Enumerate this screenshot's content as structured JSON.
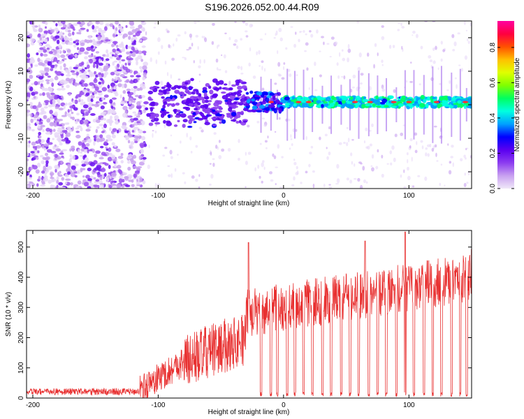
{
  "title": "S196.2026.052.00.44.R09",
  "chart_data": [
    {
      "type": "heatmap",
      "title": "S196.2026.052.00.44.R09",
      "xlabel": "Height of straight line (km)",
      "ylabel": "Frequency (Hz)",
      "xlim": [
        -205,
        150
      ],
      "ylim": [
        -25,
        25
      ],
      "xticks": [
        -200,
        -100,
        0,
        100
      ],
      "yticks": [
        -20,
        -10,
        0,
        10,
        20
      ],
      "colorbar": {
        "label": "Normalized spectral amplitude",
        "range": [
          0,
          0.95
        ],
        "ticks": [
          0.0,
          0.2,
          0.4,
          0.6,
          0.8
        ],
        "tick_labels": [
          "0.0",
          "0.2",
          "0.4",
          "0.6",
          "0.8"
        ],
        "colors": [
          "#f0e8f8",
          "#c8a0f0",
          "#8c3cf0",
          "#5a00f0",
          "#0000ff",
          "#00a0ff",
          "#00ffe0",
          "#00ff60",
          "#80ff00",
          "#e0ff00",
          "#ffc000",
          "#ff5000",
          "#ff0040",
          "#ff00a0"
        ]
      },
      "description_note": "noise region below -110 km, spectral line near 0 Hz above -110 km"
    },
    {
      "type": "line",
      "xlabel": "Height of straight line (km)",
      "ylabel": "SNR (10 * v/v)",
      "xlim": [
        -205,
        150
      ],
      "ylim": [
        0,
        555
      ],
      "xticks": [
        -200,
        -100,
        0,
        100
      ],
      "yticks": [
        0,
        100,
        200,
        300,
        400,
        500
      ],
      "color": "#e83030",
      "segments": [
        {
          "x": [
            -205,
            -115
          ],
          "level": 20,
          "noise": 8
        },
        {
          "x": [
            -115,
            -80
          ],
          "level_start": 25,
          "level_end": 120,
          "noise": 50
        },
        {
          "x": [
            -80,
            -30
          ],
          "level_start": 120,
          "level_end": 200,
          "noise": 90
        },
        {
          "x": [
            -30,
            150
          ],
          "level_start": 280,
          "level_end": 400,
          "noise": 80
        }
      ],
      "dropouts_x": [
        -18,
        -10,
        -5,
        3,
        9,
        16,
        23,
        31,
        38,
        46,
        53,
        60,
        68,
        75,
        82,
        90,
        97,
        104,
        112,
        119,
        126,
        134,
        141,
        146
      ],
      "spikes": [
        {
          "x": -28,
          "y": 515
        },
        {
          "x": 65,
          "y": 520
        },
        {
          "x": 97,
          "y": 550
        },
        {
          "x": 150,
          "y": 492
        }
      ]
    }
  ],
  "labels": {
    "top_xlabel": "Height of straight line (km)",
    "top_ylabel": "Frequency (Hz)",
    "bottom_xlabel": "Height of straight line (km)",
    "bottom_ylabel": "SNR (10 * v/v)",
    "colorbar_label": "Normalized spectral amplitude"
  }
}
